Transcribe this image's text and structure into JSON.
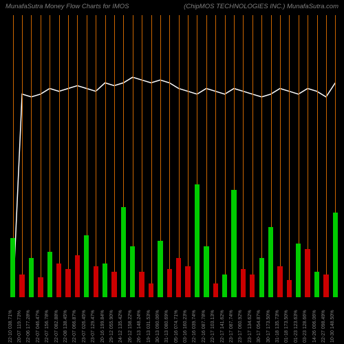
{
  "title": {
    "left": "MunafaSutra  Money Flow  Charts for IMOS",
    "right": "(ChipMOS TECHNOLOGIES INC.) MunafaSutra.com",
    "color": "#808080",
    "fontsize": 9.5
  },
  "background": "#000000",
  "plot": {
    "grid_color": "#cc6600",
    "grid_width": 1,
    "n": 36,
    "ylim_bar": 100,
    "ylim_line": 100
  },
  "bars": {
    "red": "#cc0000",
    "green": "#00cc00",
    "width_ratio": 0.55,
    "values": [
      {
        "v": 21,
        "c": "g"
      },
      {
        "v": 8,
        "c": "r"
      },
      {
        "v": 14,
        "c": "g"
      },
      {
        "v": 7,
        "c": "r"
      },
      {
        "v": 16,
        "c": "g"
      },
      {
        "v": 12,
        "c": "r"
      },
      {
        "v": 10,
        "c": "r"
      },
      {
        "v": 15,
        "c": "r"
      },
      {
        "v": 22,
        "c": "g"
      },
      {
        "v": 11,
        "c": "r"
      },
      {
        "v": 12,
        "c": "g"
      },
      {
        "v": 9,
        "c": "r"
      },
      {
        "v": 32,
        "c": "g"
      },
      {
        "v": 18,
        "c": "g"
      },
      {
        "v": 9,
        "c": "r"
      },
      {
        "v": 5,
        "c": "r"
      },
      {
        "v": 20,
        "c": "g"
      },
      {
        "v": 10,
        "c": "r"
      },
      {
        "v": 14,
        "c": "r"
      },
      {
        "v": 11,
        "c": "r"
      },
      {
        "v": 40,
        "c": "g"
      },
      {
        "v": 18,
        "c": "g"
      },
      {
        "v": 5,
        "c": "r"
      },
      {
        "v": 8,
        "c": "g"
      },
      {
        "v": 38,
        "c": "g"
      },
      {
        "v": 10,
        "c": "r"
      },
      {
        "v": 8,
        "c": "r"
      },
      {
        "v": 14,
        "c": "g"
      },
      {
        "v": 25,
        "c": "g"
      },
      {
        "v": 11,
        "c": "r"
      },
      {
        "v": 6,
        "c": "r"
      },
      {
        "v": 19,
        "c": "g"
      },
      {
        "v": 17,
        "c": "r"
      },
      {
        "v": 9,
        "c": "g"
      },
      {
        "v": 8,
        "c": "r"
      },
      {
        "v": 30,
        "c": "g"
      }
    ]
  },
  "line": {
    "color": "#ffffff",
    "width": 1.5,
    "values": [
      0,
      72,
      71,
      72,
      74,
      73,
      74,
      75,
      74,
      73,
      76,
      75,
      76,
      78,
      77,
      76,
      77,
      76,
      74,
      73,
      72,
      74,
      73,
      72,
      74,
      73,
      72,
      71,
      72,
      74,
      73,
      72,
      74,
      73,
      71,
      76
    ]
  },
  "xlabels": {
    "color": "#808080",
    "fontsize": 7,
    "items": [
      "22-10 038.71%",
      "20-07 119.73%",
      "22-06 177.28%",
      "22-07 046.47%",
      "22-07 156.78%",
      "22-07 082.88%",
      "22-08 138.45%",
      "22-07 066.87%",
      "23-07 026.45%",
      "23-07 129.47%",
      "20-16 199.84%",
      "29-12 055.90%",
      "24-12 135.42%",
      "26-12 158.22%",
      "26-13 148.24%",
      "19-13 031.53%",
      "30-13 090.06%",
      "31-13 080.69%",
      "05-16 074.71%",
      "03-16 160.23%",
      "22-16 039.74%",
      "22-16 087.78%",
      "22-17 103.13%",
      "22-17 141.62%",
      "23-17 087.74%",
      "23-17 060.92%",
      "23-17 134.62%",
      "30-17 054.87%",
      "30-17 173.50%",
      "31-18 135.73%",
      "01-18 173.50%",
      "01-23 123.63%",
      "03-23 128.66%",
      "14-26 006.06%",
      "22-27 098.49%",
      "10-30 148.50%"
    ]
  }
}
